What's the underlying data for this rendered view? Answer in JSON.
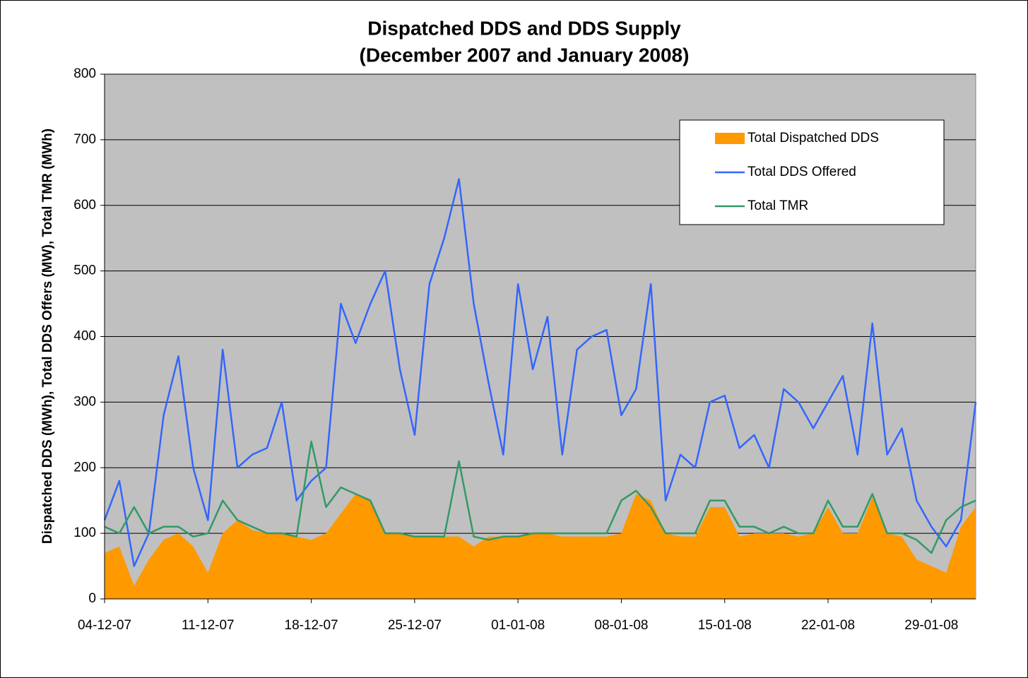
{
  "chart_data": {
    "type": "line",
    "title": [
      "Dispatched DDS and DDS Supply",
      "(December 2007 and January 2008)"
    ],
    "y_label": "Dispatched DDS (MWh), Total DDS Offers (MW), Total TMR (MWh)",
    "x": [
      "2007-12-04",
      "2007-12-05",
      "2007-12-06",
      "2007-12-07",
      "2007-12-08",
      "2007-12-09",
      "2007-12-10",
      "2007-12-11",
      "2007-12-12",
      "2007-12-13",
      "2007-12-14",
      "2007-12-15",
      "2007-12-16",
      "2007-12-17",
      "2007-12-18",
      "2007-12-19",
      "2007-12-20",
      "2007-12-21",
      "2007-12-22",
      "2007-12-23",
      "2007-12-24",
      "2007-12-25",
      "2007-12-26",
      "2007-12-27",
      "2007-12-28",
      "2007-12-29",
      "2007-12-30",
      "2007-12-31",
      "2008-01-01",
      "2008-01-02",
      "2008-01-03",
      "2008-01-04",
      "2008-01-05",
      "2008-01-06",
      "2008-01-07",
      "2008-01-08",
      "2008-01-09",
      "2008-01-10",
      "2008-01-11",
      "2008-01-12",
      "2008-01-13",
      "2008-01-14",
      "2008-01-15",
      "2008-01-16",
      "2008-01-17",
      "2008-01-18",
      "2008-01-19",
      "2008-01-20",
      "2008-01-21",
      "2008-01-22",
      "2008-01-23",
      "2008-01-24",
      "2008-01-25",
      "2008-01-26",
      "2008-01-27",
      "2008-01-28",
      "2008-01-29",
      "2008-01-30",
      "2008-01-31",
      "2008-02-01"
    ],
    "series": [
      {
        "name": "Total Dispatched DDS",
        "color": "#ff9900",
        "kind": "area",
        "values": [
          70,
          80,
          20,
          60,
          90,
          100,
          80,
          40,
          100,
          120,
          105,
          100,
          100,
          95,
          90,
          100,
          130,
          160,
          150,
          100,
          100,
          95,
          95,
          95,
          95,
          80,
          95,
          95,
          95,
          100,
          100,
          95,
          95,
          95,
          95,
          100,
          160,
          150,
          100,
          95,
          95,
          140,
          140,
          95,
          100,
          100,
          100,
          95,
          100,
          140,
          100,
          100,
          155,
          100,
          95,
          60,
          50,
          40,
          110,
          140
        ]
      },
      {
        "name": "Total DDS Offered",
        "color": "#3366ff",
        "kind": "line",
        "values": [
          120,
          180,
          50,
          100,
          280,
          370,
          200,
          120,
          380,
          200,
          220,
          230,
          300,
          150,
          180,
          200,
          450,
          390,
          450,
          500,
          350,
          250,
          480,
          550,
          640,
          450,
          330,
          220,
          480,
          350,
          430,
          220,
          380,
          400,
          410,
          280,
          320,
          480,
          150,
          220,
          200,
          300,
          310,
          230,
          250,
          200,
          320,
          300,
          260,
          300,
          340,
          220,
          420,
          220,
          260,
          150,
          110,
          80,
          120,
          300
        ]
      },
      {
        "name": "Total TMR",
        "color": "#339966",
        "kind": "line",
        "values": [
          110,
          100,
          140,
          100,
          110,
          110,
          95,
          100,
          150,
          120,
          110,
          100,
          100,
          95,
          240,
          140,
          170,
          160,
          150,
          100,
          100,
          95,
          95,
          95,
          210,
          95,
          90,
          95,
          95,
          100,
          100,
          100,
          100,
          100,
          100,
          150,
          165,
          140,
          100,
          100,
          100,
          150,
          150,
          110,
          110,
          100,
          110,
          100,
          100,
          150,
          110,
          110,
          160,
          100,
          100,
          90,
          70,
          120,
          140,
          150
        ]
      }
    ],
    "xlim": [
      "2007-12-04",
      "2008-02-01"
    ],
    "xticks": [
      {
        "value": "2007-12-04",
        "label": "04-12-07"
      },
      {
        "value": "2007-12-11",
        "label": "11-12-07"
      },
      {
        "value": "2007-12-18",
        "label": "18-12-07"
      },
      {
        "value": "2007-12-25",
        "label": "25-12-07"
      },
      {
        "value": "2008-01-01",
        "label": "01-01-08"
      },
      {
        "value": "2008-01-08",
        "label": "08-01-08"
      },
      {
        "value": "2008-01-15",
        "label": "15-01-08"
      },
      {
        "value": "2008-01-22",
        "label": "22-01-08"
      },
      {
        "value": "2008-01-29",
        "label": "29-01-08"
      }
    ],
    "ylim": [
      0,
      800
    ],
    "yticks": [
      0,
      100,
      200,
      300,
      400,
      500,
      600,
      700,
      800
    ],
    "grid": true,
    "legend": "upper right"
  }
}
